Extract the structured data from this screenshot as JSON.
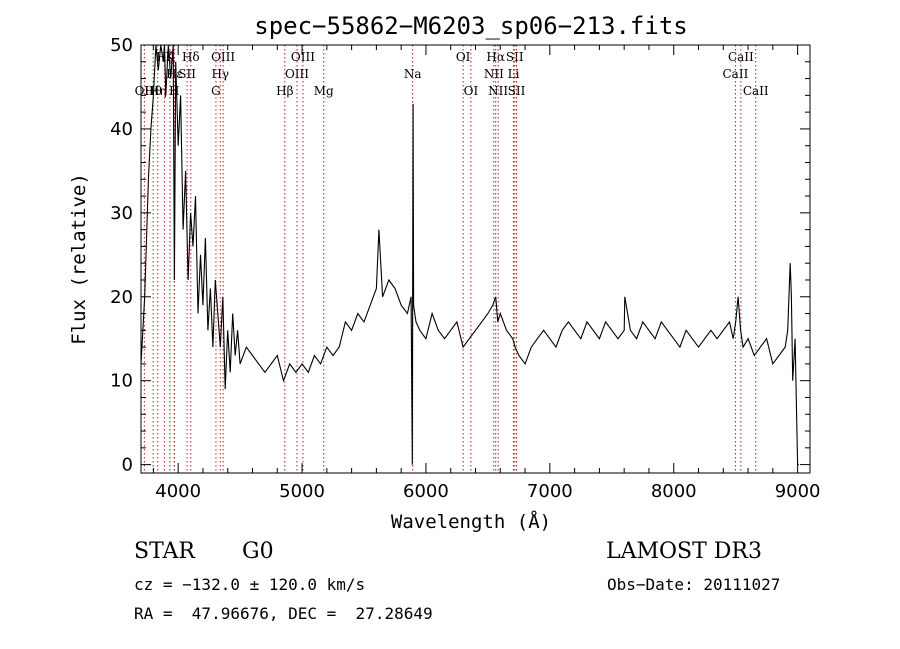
{
  "chart_data": {
    "type": "line",
    "title": "spec−55862−M6203_sp06−213.fits",
    "xlabel": "Wavelength (Å)",
    "ylabel": "Flux (relative)",
    "xlim": [
      3700,
      9100
    ],
    "ylim": [
      -1,
      50
    ],
    "xticks": [
      4000,
      5000,
      6000,
      7000,
      8000,
      9000
    ],
    "yticks": [
      0,
      10,
      20,
      30,
      40,
      50
    ],
    "line_color": "#000000",
    "marker_color": "#b22222",
    "series": [
      {
        "name": "flux",
        "x": [
          3700,
          3730,
          3760,
          3780,
          3800,
          3820,
          3840,
          3860,
          3880,
          3890,
          3900,
          3920,
          3940,
          3960,
          3970,
          3980,
          4000,
          4020,
          4040,
          4060,
          4080,
          4100,
          4120,
          4140,
          4160,
          4180,
          4200,
          4220,
          4240,
          4260,
          4280,
          4300,
          4320,
          4340,
          4360,
          4380,
          4400,
          4420,
          4440,
          4460,
          4480,
          4500,
          4550,
          4600,
          4650,
          4700,
          4750,
          4800,
          4850,
          4900,
          4950,
          5000,
          5050,
          5100,
          5150,
          5200,
          5250,
          5300,
          5350,
          5400,
          5450,
          5500,
          5550,
          5600,
          5620,
          5650,
          5700,
          5750,
          5800,
          5850,
          5880,
          5890,
          5896,
          5900,
          5920,
          5950,
          6000,
          6050,
          6100,
          6150,
          6200,
          6250,
          6300,
          6350,
          6400,
          6450,
          6500,
          6540,
          6563,
          6580,
          6600,
          6650,
          6700,
          6720,
          6750,
          6800,
          6850,
          6900,
          6950,
          7000,
          7050,
          7100,
          7150,
          7200,
          7250,
          7300,
          7350,
          7400,
          7450,
          7500,
          7550,
          7600,
          7605,
          7650,
          7700,
          7750,
          7800,
          7850,
          7900,
          7950,
          8000,
          8050,
          8100,
          8150,
          8200,
          8250,
          8300,
          8350,
          8400,
          8450,
          8480,
          8500,
          8520,
          8540,
          8560,
          8600,
          8650,
          8700,
          8750,
          8800,
          8850,
          8900,
          8920,
          8940,
          8950,
          8960,
          8980,
          9000,
          9010
        ],
        "y": [
          12,
          20,
          34,
          40,
          44,
          50,
          47,
          50,
          48,
          50,
          44,
          50,
          46,
          50,
          22,
          48,
          38,
          44,
          28,
          35,
          22,
          30,
          26,
          32,
          18,
          25,
          19,
          27,
          16,
          21,
          14,
          22,
          18,
          14,
          20,
          9,
          16,
          11,
          18,
          13,
          16,
          12,
          14,
          13,
          12,
          11,
          12,
          13,
          10,
          12,
          11,
          12,
          11,
          13,
          12,
          14,
          13,
          14,
          17,
          16,
          18,
          17,
          19,
          21,
          28,
          20,
          22,
          21,
          19,
          18,
          20,
          0,
          43,
          19,
          17,
          16,
          15,
          18,
          16,
          15,
          16,
          17,
          14,
          15,
          16,
          17,
          18,
          19,
          20,
          17,
          18,
          16,
          15,
          14,
          13,
          12,
          14,
          15,
          16,
          15,
          14,
          16,
          17,
          16,
          15,
          17,
          16,
          15,
          17,
          16,
          15,
          16,
          20,
          16,
          15,
          17,
          16,
          15,
          17,
          16,
          15,
          14,
          16,
          15,
          14,
          15,
          16,
          15,
          16,
          17,
          15,
          17,
          20,
          16,
          14,
          15,
          13,
          14,
          15,
          12,
          13,
          14,
          16,
          24,
          20,
          10,
          15,
          0,
          0
        ]
      }
    ],
    "lines": [
      {
        "name": "OII",
        "x": 3727,
        "label_row": 3
      },
      {
        "name": "Hθ",
        "x": 3798,
        "label_row": 3
      },
      {
        "name": "Hη",
        "x": 3835,
        "label_row": 3
      },
      {
        "name": "Hζ",
        "x": 3889,
        "label_row": 1
      },
      {
        "name": "K",
        "x": 3934,
        "label_row": 1
      },
      {
        "name": "Hε",
        "x": 3970,
        "label_row": 2
      },
      {
        "name": "H",
        "x": 3968,
        "label_row": 3
      },
      {
        "name": "Hδ",
        "x": 4102,
        "label_row": 1
      },
      {
        "name": "SII",
        "x": 4072,
        "label_row": 2
      },
      {
        "name": "OIII",
        "x": 4363,
        "label_row": 1
      },
      {
        "name": "Hγ",
        "x": 4340,
        "label_row": 2
      },
      {
        "name": "G",
        "x": 4305,
        "label_row": 3
      },
      {
        "name": "Hβ",
        "x": 4861,
        "label_row": 3
      },
      {
        "name": "OIII",
        "x": 5007,
        "label_row": 1
      },
      {
        "name": "OIII",
        "x": 4959,
        "label_row": 2
      },
      {
        "name": "Mg",
        "x": 5175,
        "label_row": 3
      },
      {
        "name": "Na",
        "x": 5893,
        "label_row": 2
      },
      {
        "name": "OI",
        "x": 6300,
        "label_row": 1
      },
      {
        "name": "OI",
        "x": 6363,
        "label_row": 3
      },
      {
        "name": "Hα",
        "x": 6563,
        "label_row": 1
      },
      {
        "name": "NII",
        "x": 6548,
        "label_row": 2
      },
      {
        "name": "NII",
        "x": 6583,
        "label_row": 3
      },
      {
        "name": "SII",
        "x": 6717,
        "label_row": 1
      },
      {
        "name": "Li",
        "x": 6707,
        "label_row": 2
      },
      {
        "name": "SII",
        "x": 6731,
        "label_row": 3
      },
      {
        "name": "CaII",
        "x": 8542,
        "label_row": 1
      },
      {
        "name": "CaII",
        "x": 8498,
        "label_row": 2
      },
      {
        "name": "CaII",
        "x": 8662,
        "label_row": 3
      }
    ]
  },
  "info": {
    "class": "STAR",
    "subclass": "G0",
    "survey": "LAMOST DR3",
    "cz": "cz = −132.0 ± 120.0 km/s",
    "obs_date": "Obs−Date: 20111027",
    "radec": "RA =  47.96676, DEC =  27.28649"
  }
}
